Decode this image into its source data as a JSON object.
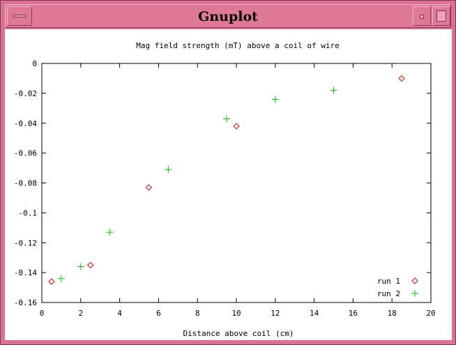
{
  "window": {
    "title": "Gnuplot"
  },
  "chart_data": {
    "type": "scatter",
    "title": "Mag field strength (mT) above a coil of wire",
    "xlabel": "Distance above coil (cm)",
    "ylabel": "",
    "xlim": [
      0,
      20
    ],
    "ylim": [
      -0.16,
      0
    ],
    "xticks": [
      0,
      2,
      4,
      6,
      8,
      10,
      12,
      14,
      16,
      18,
      20
    ],
    "yticks": [
      0,
      -0.02,
      -0.04,
      -0.06,
      -0.08,
      -0.1,
      -0.12,
      -0.14,
      -0.16
    ],
    "xtick_labels": [
      "0",
      "2",
      "4",
      "6",
      "8",
      "10",
      "12",
      "14",
      "16",
      "18",
      "20"
    ],
    "ytick_labels": [
      "0",
      "-0.02",
      "-0.04",
      "-0.06",
      "-0.08",
      "-0.1",
      "-0.12",
      "-0.14",
      "-0.16"
    ],
    "grid": false,
    "legend_position": "bottom-right",
    "series": [
      {
        "name": "run 1",
        "marker": "diamond",
        "color": "#ff0000",
        "x": [
          0.5,
          2.5,
          5.5,
          10,
          18.5
        ],
        "y": [
          -0.146,
          -0.135,
          -0.083,
          -0.042,
          -0.01
        ]
      },
      {
        "name": "run 2",
        "marker": "plus",
        "color": "#00cc00",
        "x": [
          1,
          2,
          3.5,
          6.5,
          9.5,
          12,
          15
        ],
        "y": [
          -0.144,
          -0.136,
          -0.113,
          -0.071,
          -0.037,
          -0.024,
          -0.018
        ]
      }
    ]
  }
}
